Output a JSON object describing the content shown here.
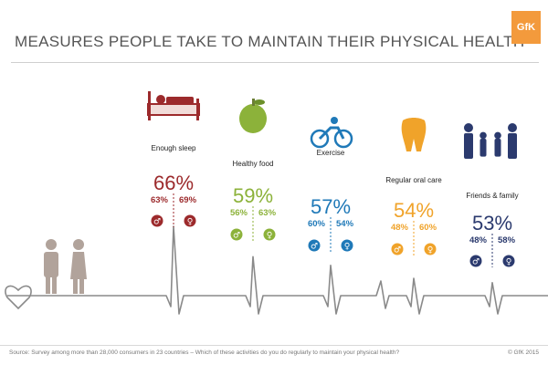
{
  "title": "MEASURES PEOPLE TAKE TO MAINTAIN THEIR PHYSICAL HEALTH",
  "logo_text": "GfK",
  "source": "Source: Survey among more than 28,000 consumers in 23 countries – Which of these activities do you do regularly to maintain your physical health?",
  "copyright": "© GfK 2015",
  "colors": {
    "sleep": "#9c2a2c",
    "food": "#8cb23a",
    "exercise": "#1f79b8",
    "oral": "#f0a32a",
    "friends": "#2b3a6e",
    "line": "#8a8a8a",
    "people": "#b1a39b",
    "title": "#555555",
    "logo": "#f39a3c"
  },
  "chart_data": {
    "type": "bar",
    "categories": [
      "Enough sleep",
      "Healthy food",
      "Exercise",
      "Regular oral care",
      "Friends & family"
    ],
    "series": [
      {
        "values": [
          66,
          59,
          57,
          54,
          53
        ]
      },
      {
        "values": [
          63,
          56,
          60,
          48,
          48
        ]
      },
      {
        "values": [
          69,
          63,
          54,
          60,
          58
        ]
      }
    ],
    "value_labels": {
      "total": [
        "66%",
        "59%",
        "57%",
        "54%",
        "53%"
      ],
      "male": [
        "63%",
        "56%",
        "60%",
        "48%",
        "48%"
      ],
      "female": [
        "69%",
        "63%",
        "54%",
        "60%",
        "58%"
      ]
    },
    "icons": [
      "bed-icon",
      "apple-icon",
      "cyclist-icon",
      "tooth-icon",
      "family-icon"
    ],
    "unit": "%"
  }
}
